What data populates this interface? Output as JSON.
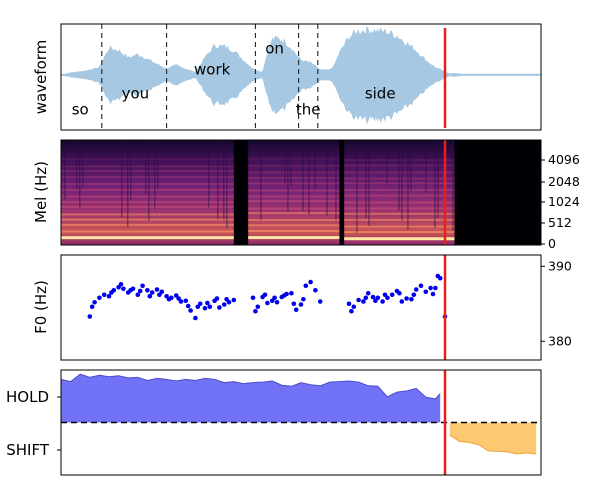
{
  "colors": {
    "waveform": "#a6c8e2",
    "cursor": "#e8201c",
    "f0_points": "#0000ee",
    "hold_fill": "#6a6af5",
    "hold_line": "#4b4bc8",
    "shift_fill": "#fdc56a",
    "shift_line": "#f0a43c",
    "threshold": "#000000"
  },
  "chart_data": [
    {
      "type": "area",
      "panel": "waveform",
      "ylabel": "waveform",
      "x_range": [
        0,
        1
      ],
      "y_range": [
        -1,
        1
      ],
      "envelope": {
        "x": [
          0.0,
          0.02,
          0.05,
          0.08,
          0.1,
          0.12,
          0.14,
          0.16,
          0.18,
          0.2,
          0.22,
          0.24,
          0.26,
          0.28,
          0.3,
          0.32,
          0.34,
          0.36,
          0.38,
          0.4,
          0.42,
          0.43,
          0.44,
          0.45,
          0.46,
          0.47,
          0.48,
          0.49,
          0.5,
          0.52,
          0.54,
          0.56,
          0.57,
          0.58,
          0.6,
          0.62,
          0.64,
          0.66,
          0.68,
          0.7,
          0.72,
          0.74,
          0.76,
          0.78,
          0.8,
          0.81,
          0.82,
          0.83,
          0.84,
          0.85,
          1.0
        ],
        "amp": [
          0.0,
          0.04,
          0.08,
          0.15,
          0.55,
          0.5,
          0.35,
          0.42,
          0.32,
          0.22,
          0.12,
          0.2,
          0.12,
          0.05,
          0.35,
          0.6,
          0.58,
          0.5,
          0.3,
          0.12,
          0.05,
          0.45,
          0.72,
          0.75,
          0.72,
          0.65,
          0.55,
          0.42,
          0.3,
          0.25,
          0.1,
          0.1,
          0.2,
          0.45,
          0.78,
          0.9,
          0.92,
          0.9,
          0.88,
          0.8,
          0.65,
          0.5,
          0.3,
          0.15,
          0.06,
          0.02,
          0.03,
          0.02,
          0.01,
          0.01,
          0.0
        ]
      },
      "word_boundaries": [
        0.085,
        0.22,
        0.405,
        0.495,
        0.535
      ],
      "words": [
        {
          "text": "so",
          "x": 0.04,
          "y": -0.65
        },
        {
          "text": "you",
          "x": 0.155,
          "y": -0.35
        },
        {
          "text": "work",
          "x": 0.315,
          "y": 0.1
        },
        {
          "text": "on",
          "x": 0.445,
          "y": 0.5
        },
        {
          "text": "the",
          "x": 0.515,
          "y": -0.65
        },
        {
          "text": "side",
          "x": 0.665,
          "y": -0.35
        }
      ],
      "cursor_x": 0.8
    },
    {
      "type": "heatmap",
      "panel": "mel-spectrogram",
      "ylabel": "Mel (Hz)",
      "x_range": [
        0,
        1
      ],
      "y_ticks": [
        "4096",
        "2048",
        "1024",
        "512",
        "0"
      ],
      "voiced_regions": [
        [
          0.0,
          0.36
        ],
        [
          0.39,
          0.58
        ],
        [
          0.59,
          0.82
        ]
      ],
      "silence_after": 0.82,
      "cursor_x": 0.8
    },
    {
      "type": "scatter",
      "panel": "f0",
      "ylabel": "F0 (Hz)",
      "y_ticks": [
        390,
        380
      ],
      "ylim": [
        377.5,
        391.5
      ],
      "points": {
        "x": [
          0.06,
          0.065,
          0.07,
          0.08,
          0.09,
          0.1,
          0.105,
          0.11,
          0.12,
          0.125,
          0.13,
          0.14,
          0.145,
          0.15,
          0.16,
          0.165,
          0.17,
          0.18,
          0.185,
          0.19,
          0.2,
          0.205,
          0.21,
          0.22,
          0.225,
          0.23,
          0.24,
          0.245,
          0.25,
          0.26,
          0.265,
          0.27,
          0.28,
          0.285,
          0.29,
          0.3,
          0.305,
          0.31,
          0.32,
          0.325,
          0.33,
          0.34,
          0.345,
          0.35,
          0.36,
          0.4,
          0.405,
          0.41,
          0.42,
          0.425,
          0.43,
          0.44,
          0.445,
          0.45,
          0.46,
          0.465,
          0.47,
          0.48,
          0.485,
          0.49,
          0.5,
          0.505,
          0.51,
          0.52,
          0.53,
          0.54,
          0.6,
          0.605,
          0.61,
          0.62,
          0.63,
          0.635,
          0.64,
          0.65,
          0.655,
          0.66,
          0.67,
          0.675,
          0.68,
          0.69,
          0.7,
          0.705,
          0.71,
          0.72,
          0.73,
          0.735,
          0.74,
          0.75,
          0.76,
          0.77,
          0.775,
          0.78,
          0.785,
          0.79,
          0.8
        ],
        "y": [
          383.3,
          384.6,
          385.2,
          385.8,
          386.2,
          386.0,
          386.5,
          386.8,
          387.2,
          387.6,
          387.0,
          386.5,
          386.8,
          387.0,
          386.2,
          386.7,
          387.4,
          386.8,
          386.0,
          386.5,
          386.9,
          386.2,
          386.6,
          386.0,
          385.6,
          385.8,
          386.1,
          385.7,
          385.3,
          385.4,
          384.7,
          384.1,
          383.1,
          384.6,
          385.0,
          384.4,
          385.1,
          384.6,
          385.4,
          385.7,
          384.5,
          384.9,
          385.6,
          385.2,
          385.5,
          385.8,
          384.0,
          384.6,
          385.9,
          386.2,
          385.1,
          385.4,
          385.8,
          385.2,
          385.9,
          386.1,
          386.3,
          386.4,
          385.0,
          384.2,
          384.9,
          385.6,
          387.4,
          387.9,
          386.8,
          385.3,
          385.0,
          384.0,
          384.6,
          385.5,
          385.3,
          385.8,
          386.4,
          385.9,
          385.4,
          385.8,
          385.3,
          386.2,
          385.8,
          386.2,
          386.7,
          386.4,
          385.3,
          385.7,
          385.6,
          386.2,
          386.9,
          387.4,
          386.6,
          387.1,
          386.3,
          387.1,
          388.7,
          388.4,
          383.3
        ]
      },
      "cursor_x": 0.8
    },
    {
      "type": "area",
      "panel": "turn-taking",
      "y_categories": [
        "HOLD",
        "SHIFT"
      ],
      "threshold": 0.0,
      "ylim": [
        -1.0,
        1.0
      ],
      "hold": {
        "x": [
          0.0,
          0.02,
          0.04,
          0.06,
          0.08,
          0.1,
          0.12,
          0.14,
          0.16,
          0.18,
          0.2,
          0.22,
          0.24,
          0.26,
          0.28,
          0.3,
          0.32,
          0.34,
          0.36,
          0.38,
          0.4,
          0.42,
          0.44,
          0.46,
          0.48,
          0.5,
          0.52,
          0.54,
          0.56,
          0.58,
          0.6,
          0.62,
          0.64,
          0.66,
          0.68,
          0.7,
          0.72,
          0.74,
          0.76,
          0.78,
          0.79
        ],
        "y": [
          0.82,
          0.78,
          0.92,
          0.86,
          0.9,
          0.87,
          0.89,
          0.85,
          0.86,
          0.8,
          0.84,
          0.82,
          0.79,
          0.82,
          0.8,
          0.84,
          0.82,
          0.76,
          0.78,
          0.74,
          0.76,
          0.77,
          0.79,
          0.71,
          0.69,
          0.76,
          0.72,
          0.7,
          0.77,
          0.78,
          0.79,
          0.77,
          0.7,
          0.69,
          0.49,
          0.58,
          0.6,
          0.65,
          0.48,
          0.45,
          0.55
        ]
      },
      "shift": {
        "x": [
          0.81,
          0.83,
          0.85,
          0.87,
          0.89,
          0.91,
          0.93,
          0.95,
          0.97,
          0.99
        ],
        "y": [
          -0.24,
          -0.36,
          -0.38,
          -0.42,
          -0.54,
          -0.55,
          -0.56,
          -0.6,
          -0.58,
          -0.6
        ]
      },
      "cursor_x": 0.8
    }
  ]
}
